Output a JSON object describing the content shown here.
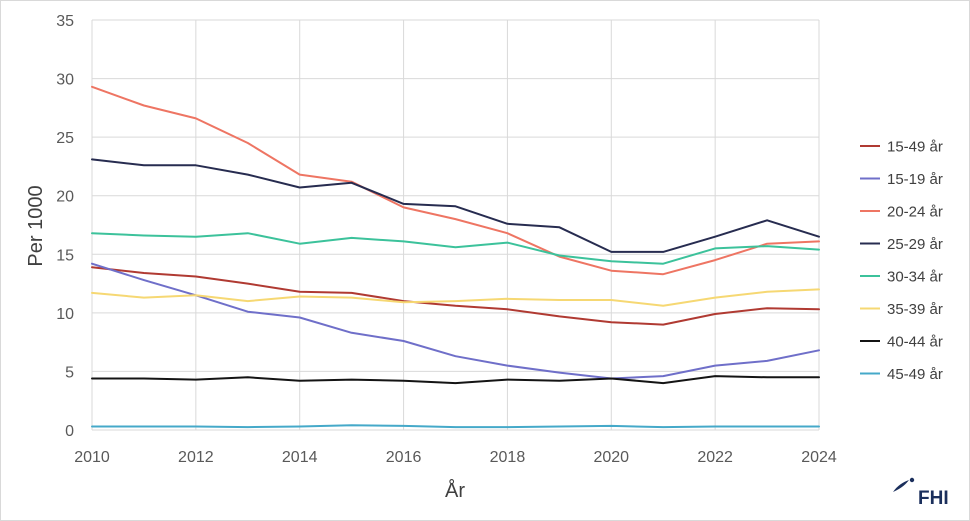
{
  "chart_data": {
    "type": "line",
    "x": [
      2010,
      2011,
      2012,
      2013,
      2014,
      2015,
      2016,
      2017,
      2018,
      2019,
      2020,
      2021,
      2022,
      2023,
      2024
    ],
    "x_ticks": [
      "2010",
      "2012",
      "2014",
      "2016",
      "2018",
      "2020",
      "2022",
      "2024"
    ],
    "y_ticks": [
      "0",
      "5",
      "10",
      "15",
      "20",
      "25",
      "30",
      "35"
    ],
    "ylim": [
      0,
      35
    ],
    "xlim": [
      2010,
      2024
    ],
    "xlabel": "År",
    "ylabel": "Per 1000",
    "grid": "vertical and horizontal",
    "legend_position": "right",
    "series": [
      {
        "name": "15-49 år",
        "color": "#b03a32",
        "values": [
          13.9,
          13.4,
          13.1,
          12.5,
          11.8,
          11.7,
          11.0,
          10.6,
          10.3,
          9.7,
          9.2,
          9.0,
          9.9,
          10.4,
          10.3
        ]
      },
      {
        "name": "15-19 år",
        "color": "#6f6fc9",
        "values": [
          14.2,
          12.8,
          11.5,
          10.1,
          9.6,
          8.3,
          7.6,
          6.3,
          5.5,
          4.9,
          4.4,
          4.6,
          5.5,
          5.9,
          6.8
        ]
      },
      {
        "name": "20-24 år",
        "color": "#ee7563",
        "values": [
          29.3,
          27.7,
          26.6,
          24.5,
          21.8,
          21.2,
          19.0,
          18.0,
          16.8,
          14.8,
          13.6,
          13.3,
          14.5,
          15.9,
          16.1
        ]
      },
      {
        "name": "25-29 år",
        "color": "#272c50",
        "values": [
          23.1,
          22.6,
          22.6,
          21.8,
          20.7,
          21.1,
          19.3,
          19.1,
          17.6,
          17.3,
          15.2,
          15.2,
          16.5,
          17.9,
          16.5
        ]
      },
      {
        "name": "30-34 år",
        "color": "#3cc29b",
        "values": [
          16.8,
          16.6,
          16.5,
          16.8,
          15.9,
          16.4,
          16.1,
          15.6,
          16.0,
          14.9,
          14.4,
          14.2,
          15.5,
          15.7,
          15.4
        ]
      },
      {
        "name": "35-39 år",
        "color": "#f6d873",
        "values": [
          11.7,
          11.3,
          11.5,
          11.0,
          11.4,
          11.3,
          10.9,
          11.0,
          11.2,
          11.1,
          11.1,
          10.6,
          11.3,
          11.8,
          12.0
        ]
      },
      {
        "name": "40-44 år",
        "color": "#141414",
        "values": [
          4.4,
          4.4,
          4.3,
          4.5,
          4.2,
          4.3,
          4.2,
          4.0,
          4.3,
          4.2,
          4.4,
          4.0,
          4.6,
          4.5,
          4.5
        ]
      },
      {
        "name": "45-49 år",
        "color": "#45a9c9",
        "values": [
          0.3,
          0.3,
          0.3,
          0.25,
          0.3,
          0.4,
          0.35,
          0.25,
          0.25,
          0.3,
          0.35,
          0.25,
          0.3,
          0.3,
          0.3
        ]
      }
    ]
  },
  "logo": {
    "text": "FHI"
  }
}
